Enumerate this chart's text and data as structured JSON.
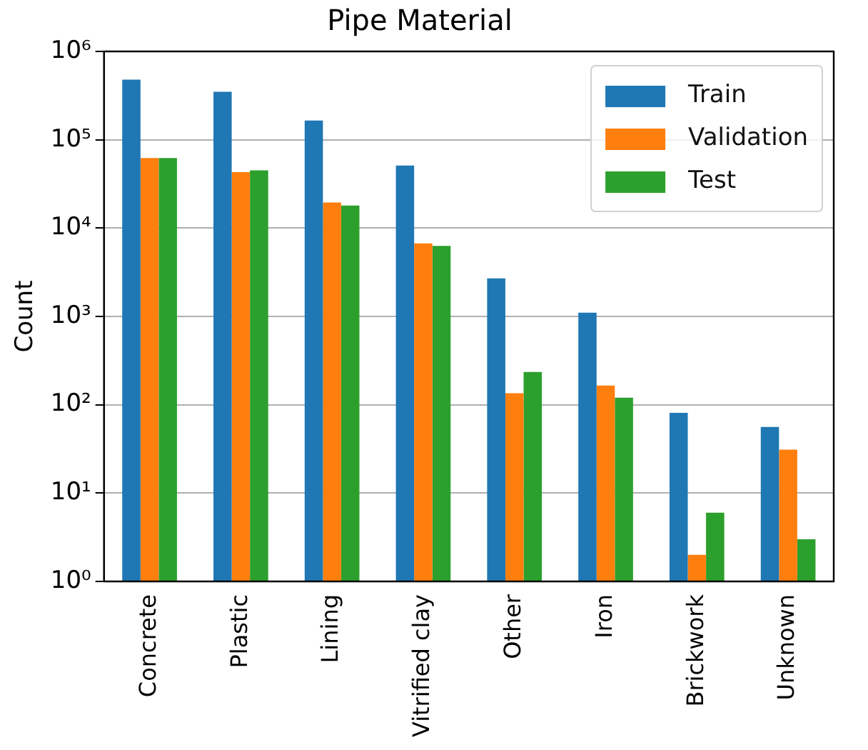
{
  "chart_data": {
    "type": "bar",
    "title": "Pipe Material",
    "ylabel": "Count",
    "categories": [
      "Concrete",
      "Plastic",
      "Lining",
      "Vitrified clay",
      "Other",
      "Iron",
      "Brickwork",
      "Unknown"
    ],
    "series": [
      {
        "name": "Train",
        "color": "#1f77b4",
        "values": [
          480000,
          350000,
          165000,
          51000,
          2700,
          1100,
          81,
          56
        ]
      },
      {
        "name": "Validation",
        "color": "#ff7f0e",
        "values": [
          62000,
          43000,
          19500,
          6700,
          135,
          165,
          2,
          31
        ]
      },
      {
        "name": "Test",
        "color": "#2ca02c",
        "values": [
          62000,
          45000,
          18000,
          6300,
          235,
          120,
          6,
          3
        ]
      }
    ],
    "log": "y",
    "ylim": [
      1,
      1000000
    ],
    "yticks": [
      {
        "value": 1,
        "label": "10⁰"
      },
      {
        "value": 10,
        "label": "10¹"
      },
      {
        "value": 100,
        "label": "10²"
      },
      {
        "value": 1000,
        "label": "10³"
      },
      {
        "value": 10000,
        "label": "10⁴"
      },
      {
        "value": 100000,
        "label": "10⁵"
      },
      {
        "value": 1000000,
        "label": "10⁶"
      }
    ],
    "grid": "y",
    "legend": "top right"
  }
}
